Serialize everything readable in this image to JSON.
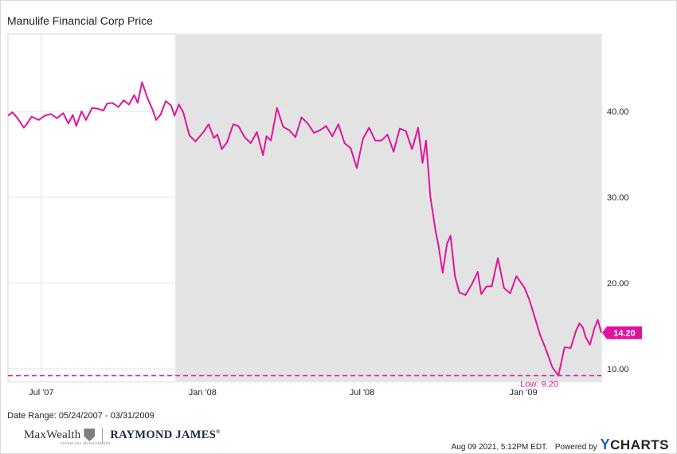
{
  "header": {
    "title": "Manulife Financial Corp Price"
  },
  "footer": {
    "date_range": "Date Range: 05/24/2007 - 03/31/2009",
    "timestamp": "Aug 09 2021, 5:12PM EDT.",
    "powered_by": "Powered by",
    "brand_y": "Y",
    "brand_rest": "CHARTS",
    "logo_maxwealth": "MaxWealth",
    "logo_maxwealth_sub": "FINANCIAL MANAGEMENT",
    "logo_raymond": "RAYMOND JAMES",
    "logo_raymond_mark": "®"
  },
  "colors": {
    "line": "#e0149c",
    "shade": "#e3e3e3",
    "grid": "#e6e6e6",
    "text": "#222222"
  },
  "chart_data": {
    "type": "line",
    "series": [
      {
        "x": [
          "2007-05-24",
          "2007-05-29",
          "2007-06-04",
          "2007-06-11",
          "2007-06-15",
          "2007-06-20",
          "2007-06-28",
          "2007-07-05",
          "2007-07-12",
          "2007-07-19",
          "2007-07-26",
          "2007-08-01",
          "2007-08-06",
          "2007-08-10",
          "2007-08-16",
          "2007-08-21",
          "2007-08-28",
          "2007-09-04",
          "2007-09-10",
          "2007-09-14",
          "2007-09-20",
          "2007-09-27",
          "2007-10-03",
          "2007-10-09",
          "2007-10-15",
          "2007-10-19",
          "2007-10-24",
          "2007-10-30",
          "2007-11-05",
          "2007-11-09",
          "2007-11-14",
          "2007-11-20",
          "2007-11-26",
          "2007-11-30",
          "2007-12-05",
          "2007-12-10",
          "2007-12-17",
          "2007-12-24",
          "2008-01-02",
          "2008-01-08",
          "2008-01-14",
          "2008-01-18",
          "2008-01-23",
          "2008-01-29",
          "2008-02-05",
          "2008-02-11",
          "2008-02-18",
          "2008-02-25",
          "2008-03-03",
          "2008-03-10",
          "2008-03-14",
          "2008-03-19",
          "2008-03-26",
          "2008-04-02",
          "2008-04-09",
          "2008-04-16",
          "2008-04-23",
          "2008-04-30",
          "2008-05-07",
          "2008-05-14",
          "2008-05-21",
          "2008-05-28",
          "2008-06-04",
          "2008-06-11",
          "2008-06-18",
          "2008-06-25",
          "2008-07-02",
          "2008-07-09",
          "2008-07-16",
          "2008-07-23",
          "2008-07-30",
          "2008-08-06",
          "2008-08-13",
          "2008-08-20",
          "2008-08-27",
          "2008-09-03",
          "2008-09-08",
          "2008-09-12",
          "2008-09-17",
          "2008-09-23",
          "2008-09-26",
          "2008-10-01",
          "2008-10-06",
          "2008-10-10",
          "2008-10-15",
          "2008-10-20",
          "2008-10-27",
          "2008-11-03",
          "2008-11-10",
          "2008-11-14",
          "2008-11-20",
          "2008-11-26",
          "2008-12-03",
          "2008-12-10",
          "2008-12-17",
          "2008-12-24",
          "2009-01-02",
          "2009-01-08",
          "2009-01-14",
          "2009-01-20",
          "2009-01-27",
          "2009-02-03",
          "2009-02-10",
          "2009-02-17",
          "2009-02-24",
          "2009-03-02",
          "2009-03-06",
          "2009-03-10",
          "2009-03-13",
          "2009-03-18",
          "2009-03-23",
          "2009-03-27",
          "2009-03-31"
        ],
        "y": [
          39.5,
          39.9,
          39.2,
          38.1,
          38.6,
          39.4,
          39.0,
          39.5,
          39.7,
          39.2,
          39.8,
          38.6,
          39.6,
          38.3,
          40.0,
          39.0,
          40.4,
          40.3,
          40.1,
          40.9,
          41.0,
          40.5,
          41.3,
          40.8,
          41.9,
          41.0,
          43.4,
          41.6,
          40.2,
          39.0,
          39.6,
          41.2,
          40.7,
          39.5,
          40.8,
          39.9,
          37.2,
          36.5,
          37.6,
          38.5,
          36.9,
          37.3,
          35.6,
          36.4,
          38.5,
          38.3,
          37.0,
          36.3,
          37.6,
          34.9,
          37.1,
          36.6,
          40.4,
          38.2,
          37.8,
          37.0,
          39.3,
          38.6,
          37.5,
          37.8,
          38.3,
          37.1,
          38.5,
          36.3,
          35.7,
          33.4,
          36.8,
          38.1,
          36.6,
          36.6,
          37.3,
          35.3,
          38.0,
          37.7,
          35.6,
          38.1,
          34.0,
          36.6,
          30.0,
          26.0,
          24.5,
          21.2,
          24.6,
          25.5,
          20.8,
          18.9,
          18.6,
          19.8,
          21.3,
          18.7,
          19.6,
          19.6,
          22.9,
          19.4,
          18.8,
          20.8,
          19.5,
          18.0,
          16.0,
          14.0,
          12.2,
          10.2,
          9.2,
          12.5,
          12.4,
          14.4,
          15.3,
          14.8,
          13.7,
          12.8,
          14.7,
          15.7,
          14.2
        ]
      }
    ],
    "y_ticks": [
      "40.00",
      "30.00",
      "20.00",
      "10.00"
    ],
    "x_ticks": [
      {
        "label": "Jul '07",
        "date": "2007-07-01"
      },
      {
        "label": "Jan '08",
        "date": "2008-01-01"
      },
      {
        "label": "Jul '08",
        "date": "2008-07-01"
      },
      {
        "label": "Jan '09",
        "date": "2009-01-01"
      }
    ],
    "xlim": [
      "2007-05-24",
      "2009-03-31"
    ],
    "ylim": [
      8.5,
      49
    ],
    "shaded_start": "2007-12-01",
    "last_value": 14.2,
    "last_label": "14.20",
    "low_value": 9.2,
    "low_label": "Low: 9.20",
    "grid": true
  }
}
